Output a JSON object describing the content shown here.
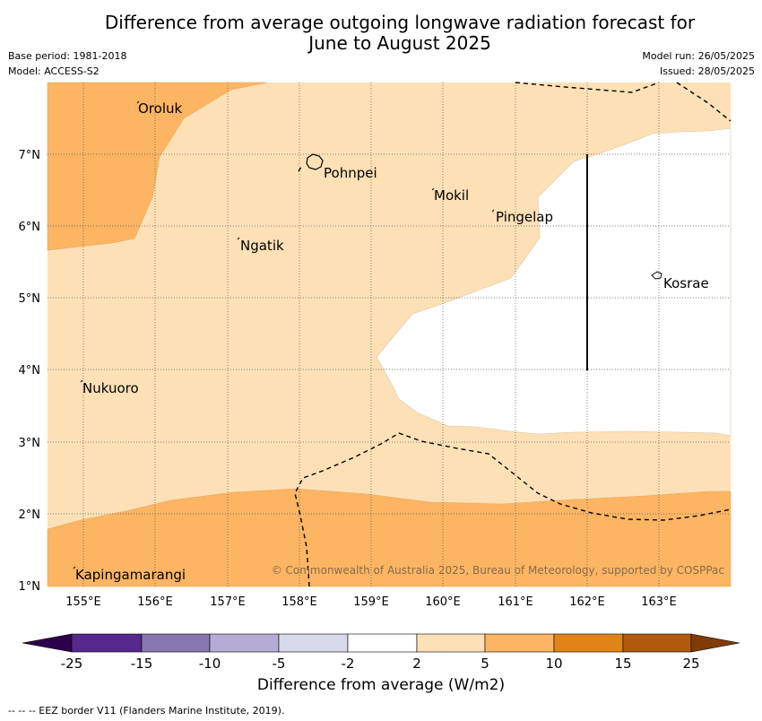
{
  "title_line1": "Difference from average outgoing longwave radiation forecast for",
  "title_line2": "June to August 2025",
  "meta": {
    "base_period": "Base period: 1981-2018",
    "model": "Model: ACCESS-S2",
    "model_run": "Model run: 26/05/2025",
    "issued": "Issued: 28/05/2025"
  },
  "map": {
    "lon_ticks": [
      "155°E",
      "156°E",
      "157°E",
      "158°E",
      "159°E",
      "160°E",
      "161°E",
      "162°E",
      "163°E"
    ],
    "lat_ticks": [
      "7°N",
      "6°N",
      "5°N",
      "4°N",
      "3°N",
      "2°N",
      "1°N"
    ],
    "places": [
      "Oroluk",
      "Pohnpei",
      "Mokil",
      "Pingelap",
      "Ngatik",
      "Kosrae",
      "Nukuoro",
      "Kapingamarangi"
    ],
    "copyright": "© Commonwealth of Australia 2025, Bureau of Meteorology, supported by COSPPac",
    "colors": {
      "light_orange": "#fde0b6",
      "mid_orange": "#fbb563",
      "white": "#ffffff"
    }
  },
  "colorbar": {
    "ticks": [
      "-25",
      "-15",
      "-10",
      "-5",
      "-2",
      "2",
      "5",
      "10",
      "15",
      "25"
    ],
    "colors": [
      "#56278d",
      "#8677b0",
      "#b4acd4",
      "#d9d9ec",
      "#ffffff",
      "#fde0b6",
      "#fbb563",
      "#e0841a",
      "#b25b0f"
    ],
    "extend_low": "#2d004b",
    "extend_high": "#7f3b08",
    "label": "Difference from average (W/m2)"
  },
  "footnote": "--  --  -- EEZ border V11 (Flanders Marine Institute, 2019)."
}
